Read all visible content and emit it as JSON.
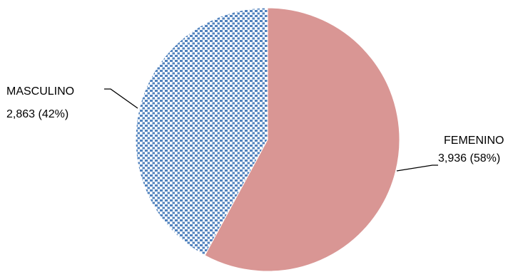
{
  "chart_data": {
    "type": "pie",
    "title": "",
    "slices": [
      {
        "name": "FEMENINO",
        "value": 3936,
        "value_label": "3,936 (58%)",
        "percent": 58,
        "color": "#d99694",
        "fill_style": "solid"
      },
      {
        "name": "MASCULINO",
        "value": 2863,
        "value_label": "2,863 (42%)",
        "percent": 42,
        "color": "#4f81bd",
        "fill_style": "dotted-pattern"
      }
    ],
    "start_angle": "12 o'clock",
    "direction": "clockwise",
    "legend": "none",
    "labels": "outside with leader lines"
  }
}
